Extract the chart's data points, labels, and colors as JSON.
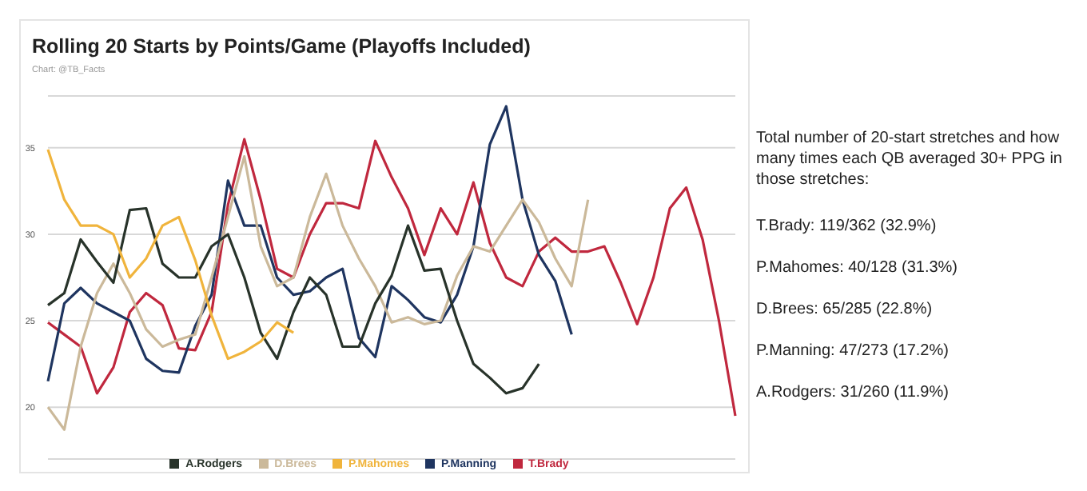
{
  "chart_data": {
    "type": "line",
    "title": "Rolling 20 Starts by Points/Game (Playoffs Included)",
    "subtitle": "Chart: @TB_Facts",
    "categories": [
      null,
      null,
      null,
      null,
      null,
      null,
      null,
      null,
      null,
      null,
      null,
      null,
      null,
      null,
      null,
      null,
      null,
      null,
      null,
      null,
      null,
      null,
      null,
      null,
      null,
      null,
      null,
      null,
      null,
      null,
      null,
      null,
      null,
      null,
      null,
      null,
      null,
      null,
      null,
      null,
      null,
      null,
      null
    ],
    "series": [
      {
        "name": "T.Brady",
        "color": "#c0283e",
        "values": [
          24.9,
          24.2,
          23.5,
          20.8,
          22.3,
          25.5,
          26.6,
          25.9,
          23.4,
          23.3,
          25.5,
          31.7,
          35.5,
          32,
          28,
          27.5,
          30,
          31.8,
          31.8,
          31.5,
          35.4,
          33.3,
          31.5,
          28.8,
          31.5,
          30,
          33,
          29.5,
          27.5,
          27,
          29,
          29.8,
          29,
          29,
          29.3,
          27.2,
          24.8,
          27.5,
          31.5,
          32.7,
          29.7,
          25,
          19.5
        ]
      },
      {
        "name": "P.Manning",
        "color": "#1f3560",
        "values": [
          21.5,
          26,
          26.9,
          26,
          25.5,
          25,
          22.8,
          22.1,
          22,
          24.7,
          26.5,
          33.1,
          30.5,
          30.5,
          27.5,
          26.5,
          26.7,
          27.5,
          28,
          24,
          22.9,
          27,
          26.2,
          25.2,
          24.9,
          26.5,
          29.3,
          35.2,
          37.4,
          32,
          28.8,
          27.3,
          24.2,
          null,
          null,
          null,
          null,
          null,
          null,
          null,
          null,
          null,
          null
        ]
      },
      {
        "name": "D.Brees",
        "color": "#cbb99a",
        "values": [
          20,
          18.7,
          23.5,
          26.6,
          28.3,
          26.6,
          24.5,
          23.5,
          23.9,
          24.2,
          27.5,
          31,
          34.5,
          29.3,
          27,
          27.5,
          31,
          33.5,
          30.5,
          28.6,
          27,
          24.9,
          25.2,
          24.8,
          25,
          27.6,
          29.3,
          29,
          30.5,
          32,
          30.7,
          28.6,
          27,
          32,
          null,
          null,
          null,
          null,
          null,
          null,
          null,
          null,
          null
        ]
      },
      {
        "name": "A.Rodgers",
        "color": "#28332a",
        "values": [
          25.9,
          26.6,
          29.7,
          28.4,
          27.2,
          31.4,
          31.5,
          28.3,
          27.5,
          27.5,
          29.3,
          30,
          27.5,
          24.3,
          22.8,
          25.5,
          27.5,
          26.5,
          23.5,
          23.5,
          26,
          27.6,
          30.5,
          27.9,
          28,
          25,
          22.5,
          21.7,
          20.8,
          21.1,
          22.5,
          null,
          null,
          null,
          null,
          null,
          null,
          null,
          null,
          null,
          null,
          null,
          null
        ]
      },
      {
        "name": "P.Mahomes",
        "color": "#f0b43c",
        "values": [
          34.9,
          32,
          30.5,
          30.5,
          30,
          27.5,
          28.6,
          30.5,
          31,
          28.5,
          25.3,
          22.8,
          23.2,
          23.8,
          24.9,
          24.3,
          null,
          null,
          null,
          null,
          null,
          null,
          null,
          null,
          null,
          null,
          null,
          null,
          null,
          null,
          null,
          null,
          null,
          null,
          null,
          null,
          null,
          null,
          null,
          null,
          null,
          null,
          null
        ]
      }
    ],
    "ylim": [
      17,
      38
    ],
    "yticks": [
      20,
      25,
      30,
      35
    ],
    "grid": "y",
    "legend": "bottom",
    "marker": "none",
    "line_style": "solid",
    "tick_labels": "y",
    "annotations": [
      "Total number of 20-start stretches and how many times each QB averaged 30+ PPG in those stretches:",
      "T.Brady: 119/362 (32.9%)",
      "P.Mahomes: 40/128 (31.3%)",
      "D.Brees: 65/285 (22.8%)",
      "P.Manning: 47/273 (17.2%)",
      "A.Rodgers: 31/260 (11.9%)"
    ]
  }
}
